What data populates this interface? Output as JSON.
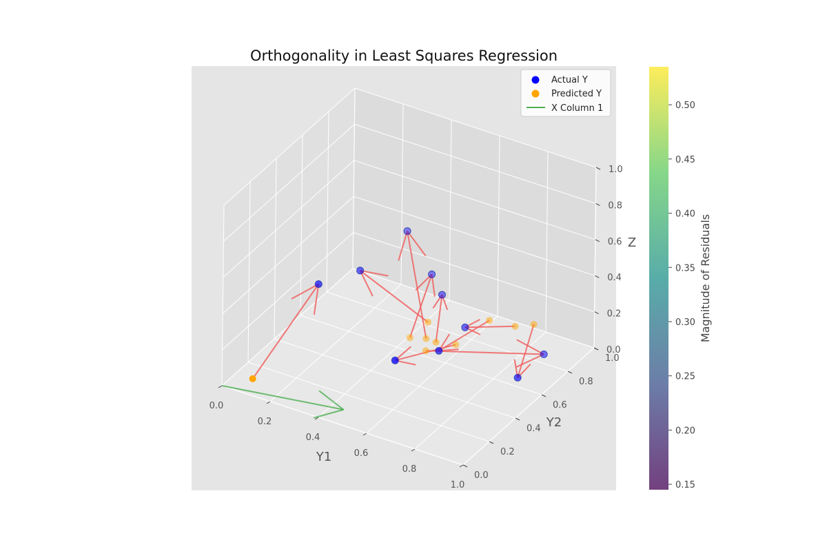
{
  "chart_data": {
    "type": "scatter",
    "title": "Orthogonality in Least Squares Regression",
    "xlabel": "Y1",
    "ylabel": "Y2",
    "zlabel": "Z",
    "xlim": [
      0,
      1
    ],
    "ylim": [
      0,
      1
    ],
    "zlim": [
      0,
      1
    ],
    "x_ticks": [
      "0.0",
      "0.2",
      "0.4",
      "0.6",
      "0.8",
      "1.0"
    ],
    "y_ticks": [
      "0.0",
      "0.2",
      "0.4",
      "0.6",
      "0.8",
      "1.0"
    ],
    "z_ticks": [
      "0.0",
      "0.2",
      "0.4",
      "0.6",
      "0.8",
      "1.0"
    ],
    "grid": true,
    "legend_position": "top-right",
    "legend": [
      {
        "label": "Actual Y",
        "kind": "point",
        "color": "#0000ff"
      },
      {
        "label": "Predicted Y",
        "kind": "point",
        "color": "#ffa500"
      },
      {
        "label": "X Column 1",
        "kind": "line",
        "color": "#4caf50"
      }
    ],
    "series": [
      {
        "name": "Actual Y",
        "color": "#0000ff",
        "points": [
          {
            "x": 0.1,
            "y": 0.55,
            "z": 0.25
          },
          {
            "x": 0.18,
            "y": 0.72,
            "z": 0.25
          },
          {
            "x": 0.25,
            "y": 0.95,
            "z": 0.35
          },
          {
            "x": 0.38,
            "y": 0.9,
            "z": 0.2
          },
          {
            "x": 0.45,
            "y": 0.85,
            "z": 0.15
          },
          {
            "x": 0.5,
            "y": 0.4,
            "z": 0.1
          },
          {
            "x": 0.6,
            "y": 0.55,
            "z": 0.1
          },
          {
            "x": 0.6,
            "y": 0.75,
            "z": 0.1
          },
          {
            "x": 0.9,
            "y": 0.6,
            "z": 0.05
          },
          {
            "x": 0.9,
            "y": 0.8,
            "z": 0.05
          }
        ]
      },
      {
        "name": "Predicted Y",
        "color": "#ffa500",
        "points": [
          {
            "x": 0.1,
            "y": 0.05,
            "z": 0.05
          },
          {
            "x": 0.5,
            "y": 0.65,
            "z": 0.15
          },
          {
            "x": 0.52,
            "y": 0.6,
            "z": 0.1
          },
          {
            "x": 0.48,
            "y": 0.55,
            "z": 0.12
          },
          {
            "x": 0.55,
            "y": 0.62,
            "z": 0.08
          },
          {
            "x": 0.6,
            "y": 0.68,
            "z": 0.05
          },
          {
            "x": 0.62,
            "y": 0.9,
            "z": 0.05
          },
          {
            "x": 0.7,
            "y": 0.95,
            "z": 0.02
          },
          {
            "x": 0.75,
            "y": 1.0,
            "z": 0.02
          },
          {
            "x": 0.53,
            "y": 0.58,
            "z": 0.05
          }
        ]
      },
      {
        "name": "X Column 1",
        "color": "#4caf50",
        "vector": {
          "from": {
            "x": 0.0,
            "y": 0.0,
            "z": 0.0
          },
          "to": {
            "x": 0.45,
            "y": 0.1,
            "z": 0.0
          }
        }
      }
    ],
    "residual_color": "#f06060",
    "colorbar": {
      "label": "Magnitude of Residuals",
      "min": 0.145,
      "max": 0.535,
      "ticks": [
        "0.15",
        "0.20",
        "0.25",
        "0.30",
        "0.35",
        "0.40",
        "0.45",
        "0.50"
      ],
      "colormap": "viridis"
    }
  }
}
